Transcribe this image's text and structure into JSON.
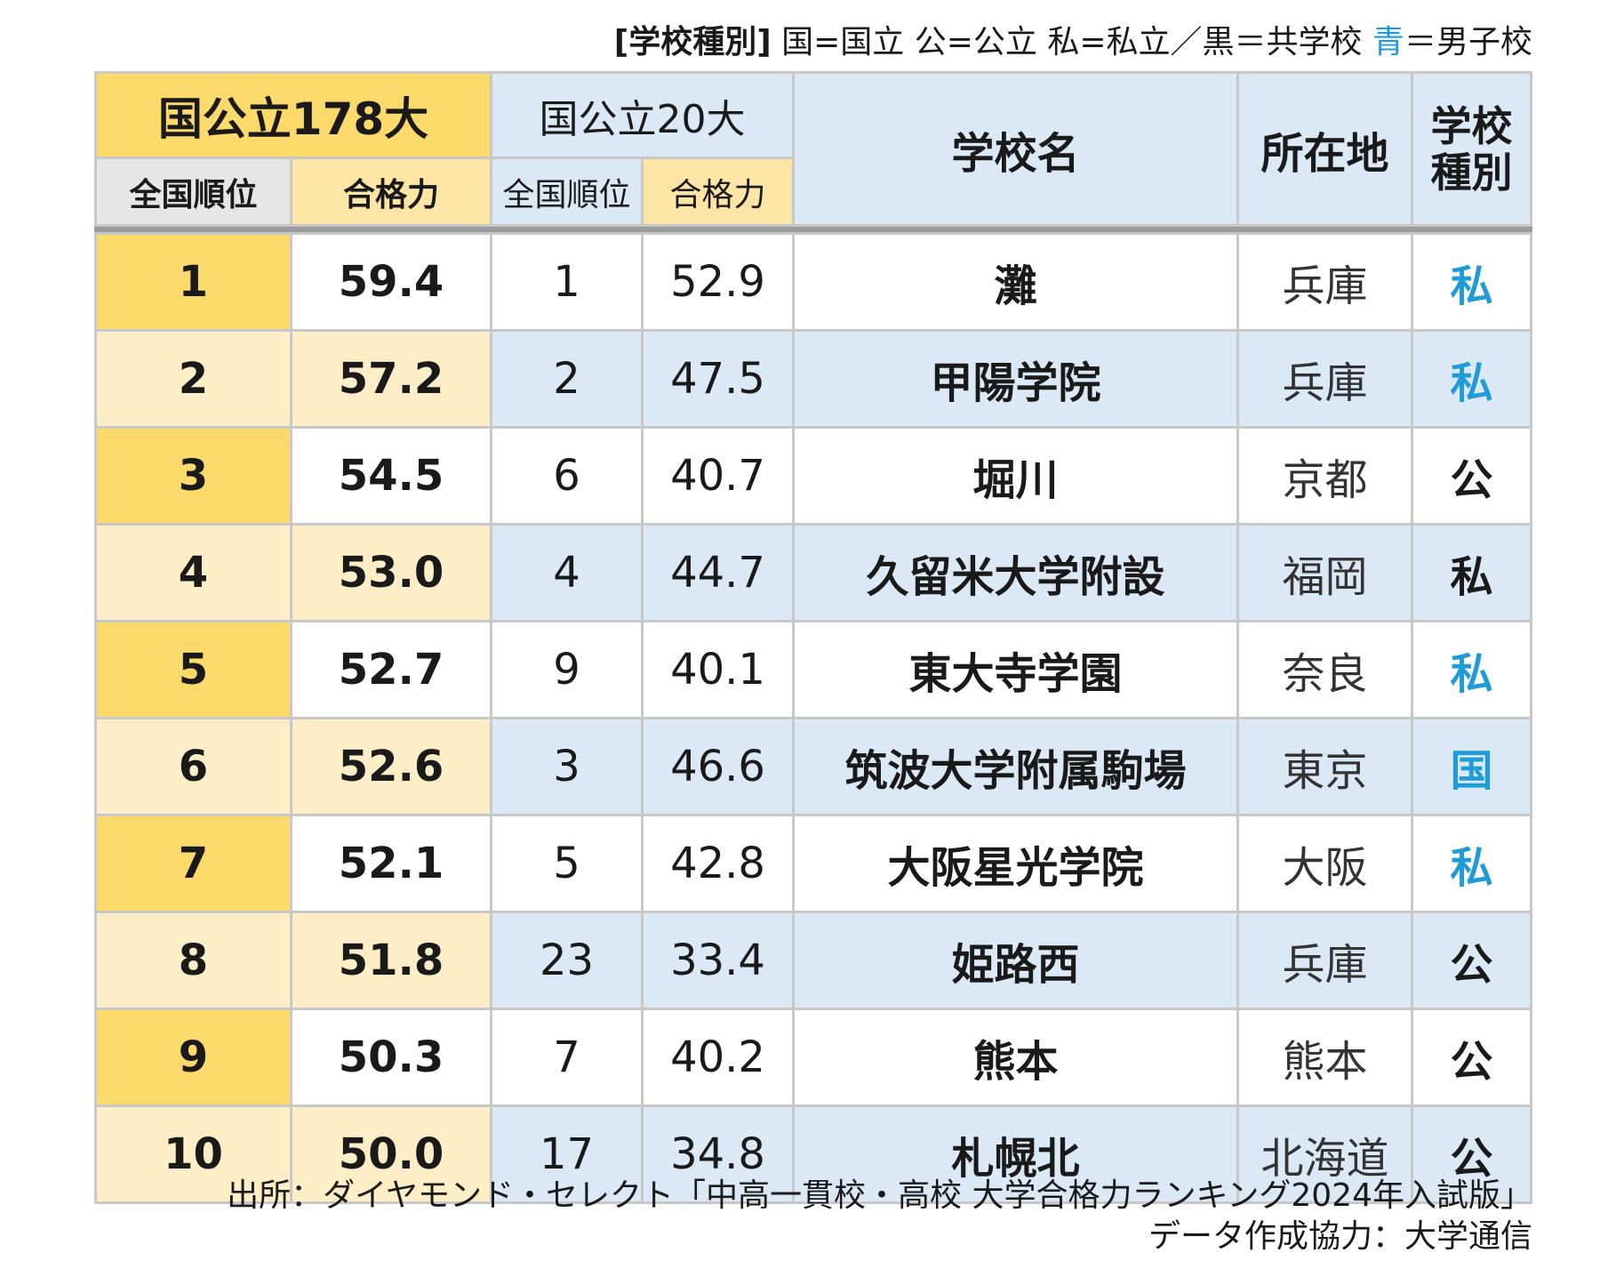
{
  "legend": {
    "label": "[学校種別]",
    "text_a": "国=国立 公=公立 私=私立／黒＝共学校",
    "blue_word": "青",
    "text_b": "＝男子校"
  },
  "header": {
    "group178": "国公立178大",
    "group20": "国公立20大",
    "school_name": "学校名",
    "location": "所在地",
    "school_type_line1": "学校",
    "school_type_line2": "種別",
    "sub_rank": "全国順位",
    "sub_score": "合格力"
  },
  "chart_data": {
    "type": "table",
    "columns": [
      "国公立178大 全国順位",
      "国公立178大 合格力",
      "国公立20大 全国順位",
      "国公立20大 合格力",
      "学校名",
      "所在地",
      "学校種別"
    ],
    "rows": [
      {
        "rank178": "1",
        "score178": "59.4",
        "rank20": "1",
        "score20": "52.9",
        "name": "灘",
        "location": "兵庫",
        "type": "私",
        "boys": true
      },
      {
        "rank178": "2",
        "score178": "57.2",
        "rank20": "2",
        "score20": "47.5",
        "name": "甲陽学院",
        "location": "兵庫",
        "type": "私",
        "boys": true
      },
      {
        "rank178": "3",
        "score178": "54.5",
        "rank20": "6",
        "score20": "40.7",
        "name": "堀川",
        "location": "京都",
        "type": "公",
        "boys": false
      },
      {
        "rank178": "4",
        "score178": "53.0",
        "rank20": "4",
        "score20": "44.7",
        "name": "久留米大学附設",
        "location": "福岡",
        "type": "私",
        "boys": false
      },
      {
        "rank178": "5",
        "score178": "52.7",
        "rank20": "9",
        "score20": "40.1",
        "name": "東大寺学園",
        "location": "奈良",
        "type": "私",
        "boys": true
      },
      {
        "rank178": "6",
        "score178": "52.6",
        "rank20": "3",
        "score20": "46.6",
        "name": "筑波大学附属駒場",
        "location": "東京",
        "type": "国",
        "boys": true
      },
      {
        "rank178": "7",
        "score178": "52.1",
        "rank20": "5",
        "score20": "42.8",
        "name": "大阪星光学院",
        "location": "大阪",
        "type": "私",
        "boys": true
      },
      {
        "rank178": "8",
        "score178": "51.8",
        "rank20": "23",
        "score20": "33.4",
        "name": "姫路西",
        "location": "兵庫",
        "type": "公",
        "boys": false
      },
      {
        "rank178": "9",
        "score178": "50.3",
        "rank20": "7",
        "score20": "40.2",
        "name": "熊本",
        "location": "熊本",
        "type": "公",
        "boys": false
      },
      {
        "rank178": "10",
        "score178": "50.0",
        "rank20": "17",
        "score20": "34.8",
        "name": "札幌北",
        "location": "北海道",
        "type": "公",
        "boys": false
      }
    ]
  },
  "colors": {
    "yellow": "#fbd96a",
    "pale_yellow": "#fdeec7",
    "light_blue": "#dbe8f6",
    "boys_blue": "#1f9bd7"
  },
  "source": {
    "line1": "出所：ダイヤモンド・セレクト「中高一貫校・高校 大学合格力ランキング2024年入試版」",
    "line2": "データ作成協力：大学通信"
  }
}
